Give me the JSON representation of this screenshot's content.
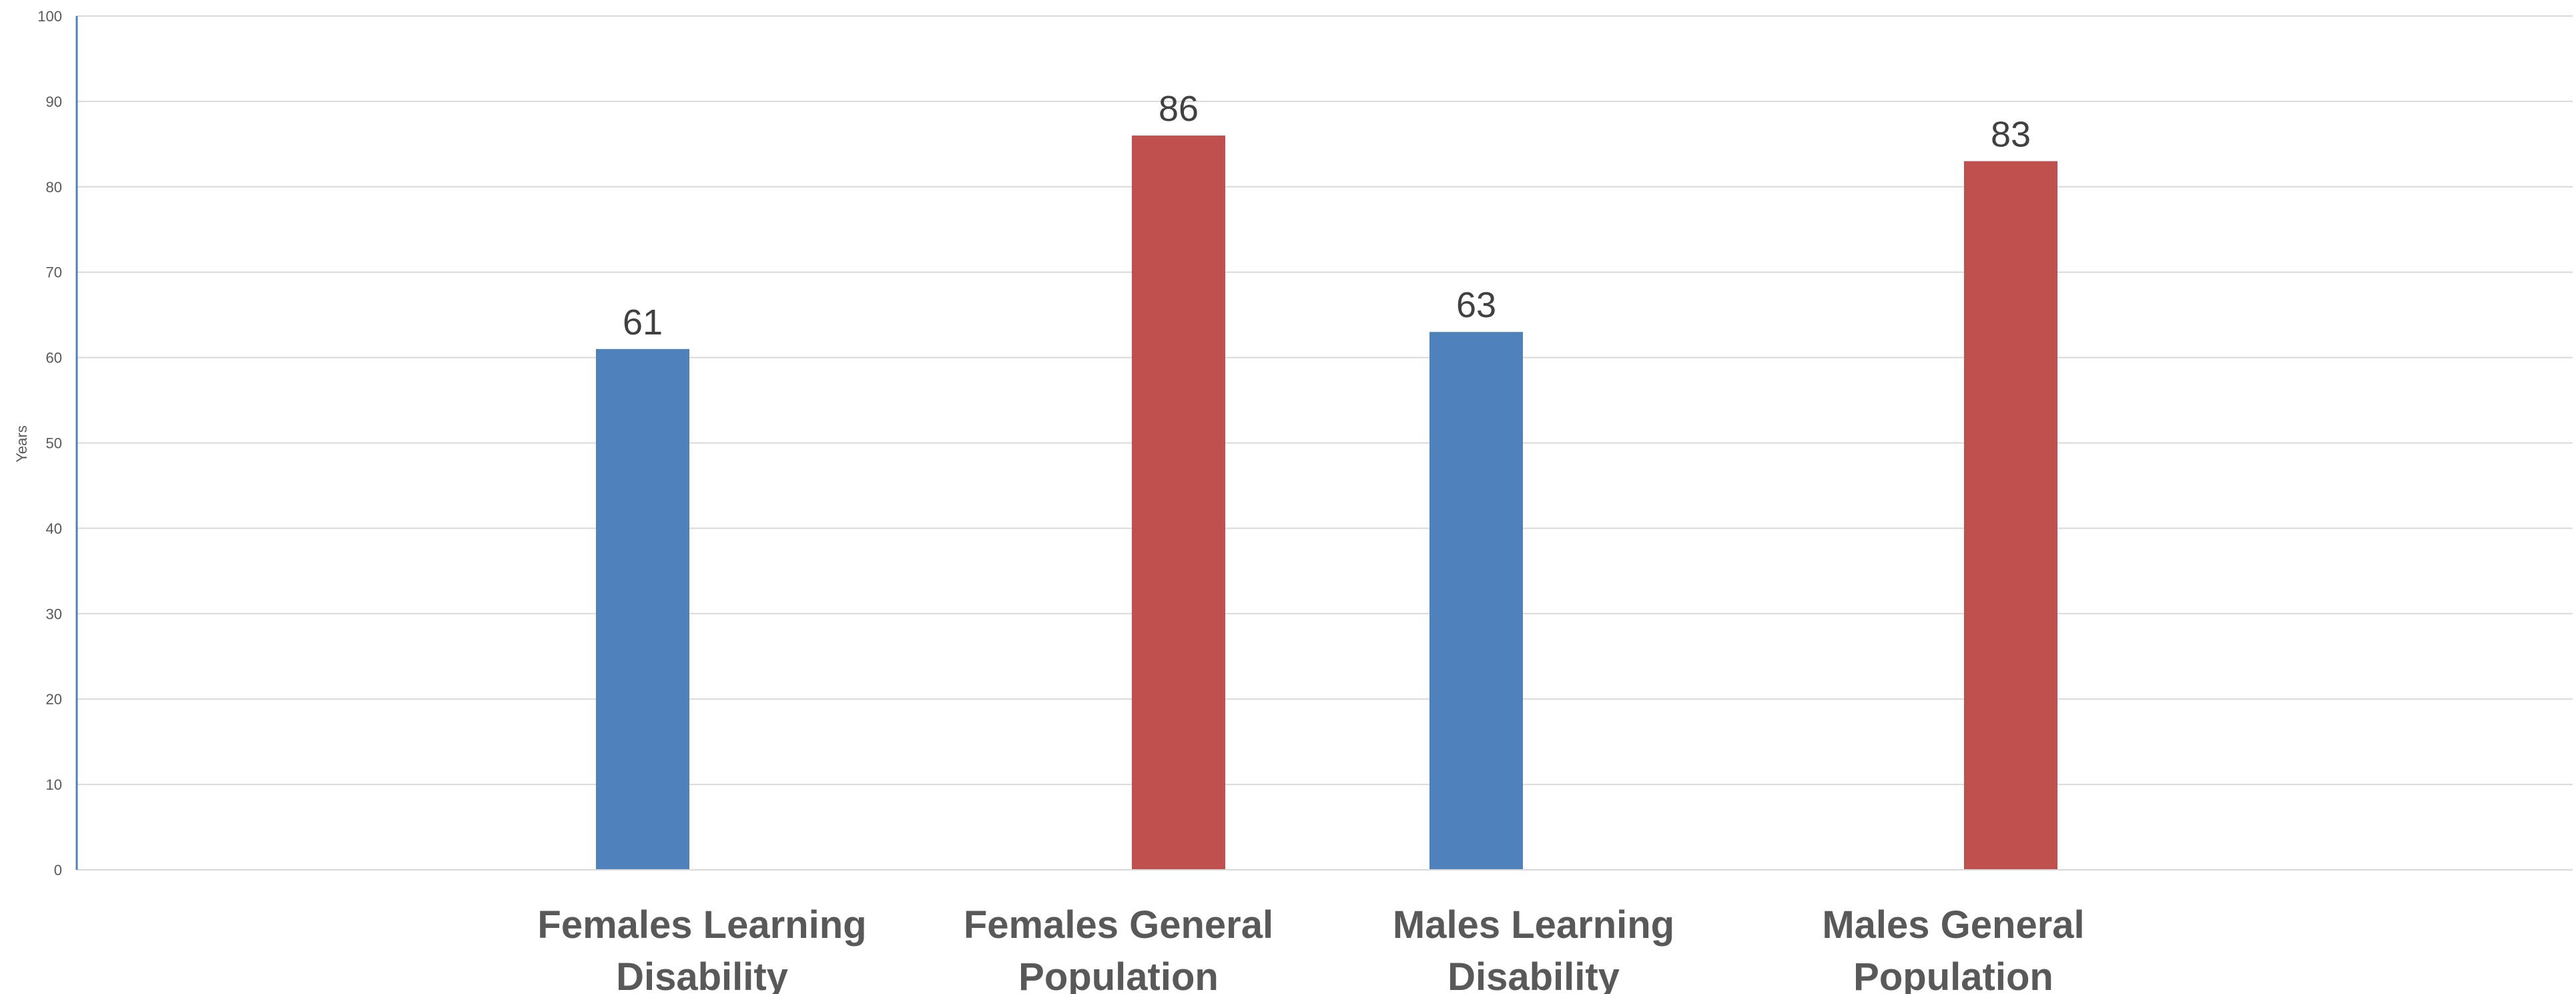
{
  "chart_data": {
    "type": "bar",
    "categories": [
      "Females Learning Disability",
      "Females General Population",
      "Males Learning Disability",
      "Males General Population"
    ],
    "category_lines": [
      [
        "Females Learning",
        "Disability"
      ],
      [
        "Females General",
        "Population"
      ],
      [
        "Males Learning",
        "Disability"
      ],
      [
        "Males General",
        "Population"
      ]
    ],
    "values": [
      61,
      86,
      63,
      83
    ],
    "bar_colors": [
      "#4f81bd",
      "#c0504d",
      "#4f81bd",
      "#c0504d"
    ],
    "data_labels": [
      "61",
      "86",
      "63",
      "83"
    ],
    "ylabel": "Years",
    "xlabel": "",
    "title": "",
    "ylim": [
      0,
      100
    ],
    "y_ticks": [
      0,
      10,
      20,
      30,
      40,
      50,
      60,
      70,
      80,
      90,
      100
    ],
    "grid": true,
    "legend": "none"
  }
}
